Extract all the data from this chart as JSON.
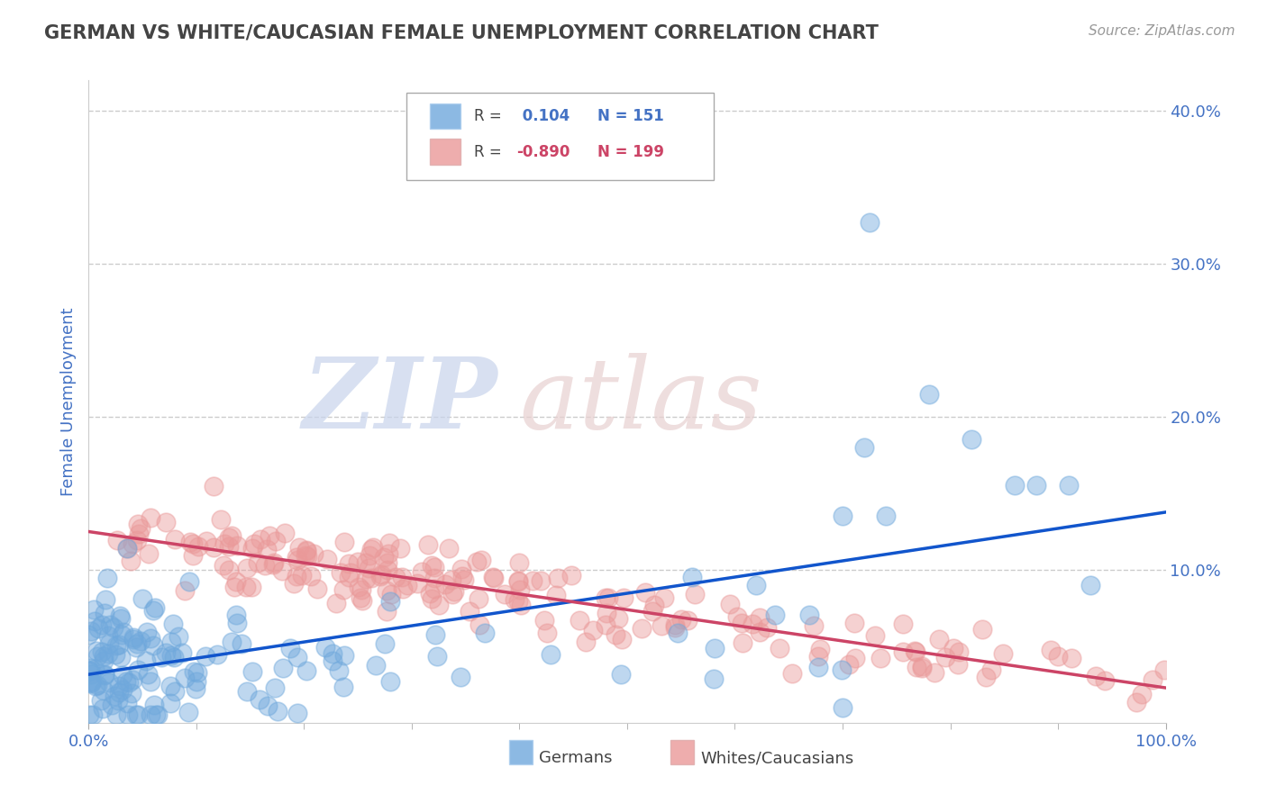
{
  "title": "GERMAN VS WHITE/CAUCASIAN FEMALE UNEMPLOYMENT CORRELATION CHART",
  "source": "Source: ZipAtlas.com",
  "ylabel": "Female Unemployment",
  "xlim": [
    0.0,
    1.0
  ],
  "ylim": [
    0.0,
    0.42
  ],
  "yticks": [
    0.1,
    0.2,
    0.3,
    0.4
  ],
  "ytick_labels": [
    "10.0%",
    "20.0%",
    "30.0%",
    "40.0%"
  ],
  "xticks": [
    0.0,
    1.0
  ],
  "xtick_labels": [
    "0.0%",
    "100.0%"
  ],
  "german_R": 0.104,
  "german_N": 151,
  "white_R": -0.89,
  "white_N": 199,
  "german_color": "#6fa8dc",
  "white_color": "#ea9999",
  "german_line_color": "#1155cc",
  "white_line_color": "#cc4466",
  "background_color": "#ffffff",
  "grid_color": "#cccccc",
  "title_color": "#444444",
  "tick_color": "#4472c4",
  "ylabel_color": "#4472c4",
  "legend_edge_color": "#aaaaaa",
  "watermark_zip_color": "#c8d4ec",
  "watermark_atlas_color": "#e8d0d0",
  "source_color": "#999999",
  "bottom_legend_items": [
    {
      "label": "Germans",
      "color": "#6fa8dc"
    },
    {
      "label": "Whites/Caucasians",
      "color": "#ea9999"
    }
  ]
}
